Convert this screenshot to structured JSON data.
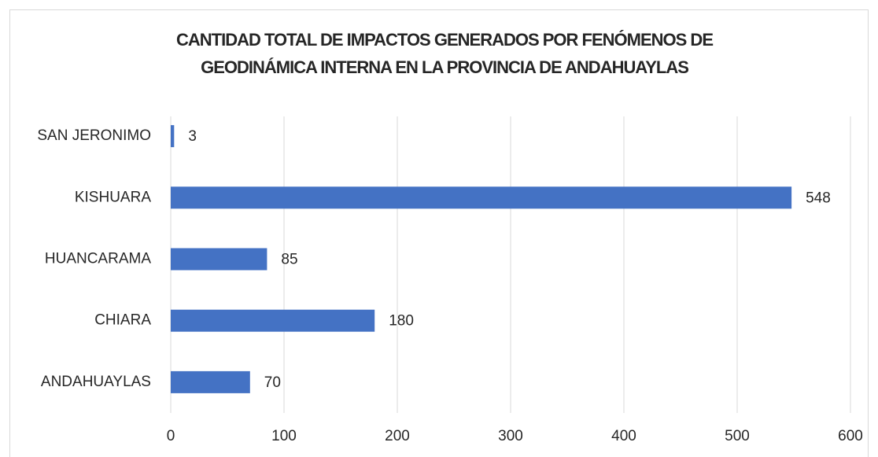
{
  "chart_data": {
    "type": "hbar",
    "title": [
      "CANTIDAD TOTAL DE IMPACTOS GENERADOS POR FENÓMENOS DE",
      "GEODINÁMICA INTERNA EN LA PROVINCIA DE ANDAHUAYLAS"
    ],
    "categories": [
      "SAN JERONIMO",
      "KISHUARA",
      "HUANCARAMA",
      "CHIARA",
      "ANDAHUAYLAS"
    ],
    "values": [
      3,
      548,
      85,
      180,
      70
    ],
    "color": "#4472c4",
    "xlim": [
      0,
      600
    ],
    "xticks": [
      0,
      100,
      200,
      300,
      400,
      500,
      600
    ],
    "grid": true
  }
}
